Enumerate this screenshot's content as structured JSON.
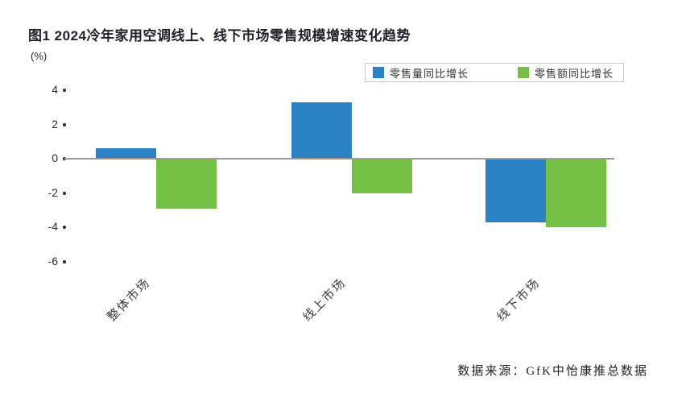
{
  "title": "图1  2024冷年家用空调线上、线下市场零售规模增速变化趋势",
  "unit_label": "(%)",
  "legend": {
    "items": [
      {
        "label": "零售量同比增长",
        "color": "#2a82c4"
      },
      {
        "label": "零售额同比增长",
        "color": "#72c044"
      }
    ]
  },
  "source": "数据来源：GfK中怡康推总数据",
  "chart_data": {
    "type": "bar",
    "title": "图1 2024冷年家用空调线上、线下市场零售规模增速变化趋势",
    "ylabel": "(%)",
    "categories": [
      "整体市场",
      "线上市场",
      "线下市场"
    ],
    "series": [
      {
        "name": "零售量同比增长",
        "color": "#2a82c4",
        "values": [
          0.6,
          3.3,
          -3.7
        ]
      },
      {
        "name": "零售额同比增长",
        "color": "#72c044",
        "values": [
          -2.9,
          -2.0,
          -4.0
        ]
      }
    ],
    "yticks": [
      4,
      2,
      0,
      -2,
      -4,
      -6
    ],
    "ylim": [
      -6.5,
      4.5
    ],
    "grid": false,
    "legend_position": "top-right",
    "baseline": 0
  }
}
